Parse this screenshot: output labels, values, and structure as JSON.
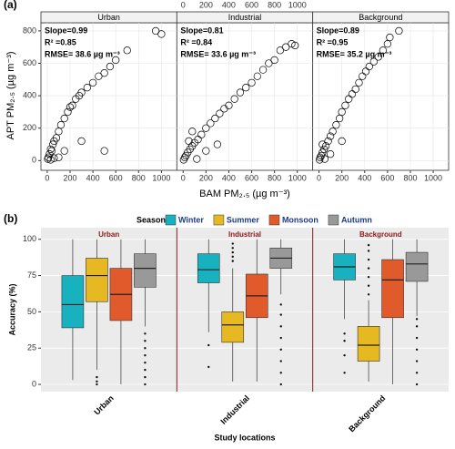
{
  "chart_data": [
    {
      "type": "scatter",
      "label": "(a)",
      "xlabel": "BAM PM₂.₅ (µg m⁻³)",
      "ylabel": "APT PM₂.₅ (µg m⁻³)",
      "xlim": [
        -55,
        1135
      ],
      "ylim": [
        -60,
        850
      ],
      "xticks": [
        0,
        200,
        400,
        600,
        800,
        1000
      ],
      "yticks": [
        0,
        200,
        400,
        600,
        800
      ],
      "grid": true,
      "color": "#000000",
      "facets": [
        {
          "name": "Urban",
          "annotations": [
            "Slope=0.99",
            "R² =0.85",
            "RMSE= 38.6 µg m⁻³"
          ],
          "x": [
            5,
            10,
            20,
            30,
            40,
            50,
            60,
            80,
            100,
            120,
            150,
            180,
            200,
            220,
            250,
            280,
            300,
            350,
            400,
            450,
            500,
            550,
            600,
            700,
            950,
            1000,
            150,
            100,
            300,
            500,
            30,
            60
          ],
          "y": [
            10,
            20,
            40,
            70,
            60,
            100,
            120,
            140,
            180,
            220,
            260,
            300,
            330,
            340,
            380,
            400,
            420,
            450,
            480,
            520,
            540,
            580,
            620,
            680,
            800,
            780,
            60,
            20,
            120,
            60,
            5,
            15
          ]
        },
        {
          "name": "Industrial",
          "annotations": [
            "Slope=0.81",
            "R² =0.84",
            "RMSE= 33.6 µg m⁻³"
          ],
          "x": [
            5,
            15,
            25,
            40,
            60,
            80,
            100,
            130,
            160,
            200,
            240,
            280,
            320,
            360,
            400,
            450,
            500,
            550,
            600,
            650,
            700,
            750,
            800,
            850,
            900,
            950,
            980,
            200,
            300,
            120,
            50,
            80
          ],
          "y": [
            5,
            20,
            30,
            50,
            70,
            90,
            110,
            130,
            160,
            200,
            230,
            260,
            290,
            320,
            340,
            380,
            420,
            450,
            480,
            520,
            560,
            600,
            620,
            680,
            700,
            720,
            710,
            60,
            100,
            10,
            120,
            180
          ]
        },
        {
          "name": "Background",
          "annotations": [
            "Slope=0.89",
            "R² =0.95",
            "RMSE= 35.2 µg m⁻³"
          ],
          "x": [
            5,
            10,
            20,
            30,
            45,
            60,
            80,
            100,
            120,
            150,
            180,
            200,
            230,
            260,
            290,
            320,
            350,
            380,
            410,
            440,
            480,
            520,
            560,
            600,
            620,
            700,
            100,
            50,
            200,
            30
          ],
          "y": [
            5,
            20,
            30,
            50,
            70,
            90,
            120,
            150,
            180,
            220,
            260,
            300,
            340,
            380,
            410,
            440,
            480,
            520,
            550,
            580,
            610,
            640,
            680,
            720,
            760,
            800,
            40,
            10,
            120,
            100
          ]
        }
      ]
    },
    {
      "type": "box",
      "label": "(b)",
      "legend_title": "Season",
      "xlabel": "Study locations",
      "ylabel": "Accuracy (%)",
      "categories": [
        "Urban",
        "Industrial",
        "Background"
      ],
      "ylim": [
        -5,
        108
      ],
      "yticks": [
        0,
        25,
        50,
        75,
        100
      ],
      "grid": true,
      "series": [
        {
          "name": "Winter",
          "color": "#17b1c0",
          "values": [
            [
              3,
              39,
              55,
              75,
              100
            ],
            [
              36,
              70,
              79,
              90,
              100
            ],
            [
              45,
              72,
              81,
              90,
              100
            ]
          ],
          "outliers": [
            [],
            [
              12,
              27
            ],
            [
              8,
              20,
              30,
              35
            ]
          ]
        },
        {
          "name": "Summer",
          "color": "#e6b822",
          "values": [
            [
              10,
              57,
              75,
              87,
              100
            ],
            [
              2,
              29,
              41,
              50,
              80
            ],
            [
              2,
              16,
              27,
              40,
              58
            ]
          ],
          "outliers": [
            [
              0,
              2,
              5
            ],
            [
              85,
              88,
              91,
              94,
              97
            ],
            [
              62,
              68,
              74,
              80,
              86,
              92,
              96
            ]
          ]
        },
        {
          "name": "Monsoon",
          "color": "#e05a2b",
          "values": [
            [
              0,
              44,
              62,
              80,
              100
            ],
            [
              2,
              46,
              61,
              76,
              100
            ],
            [
              0,
              46,
              72,
              86,
              100
            ]
          ],
          "outliers": [
            [],
            [],
            []
          ]
        },
        {
          "name": "Autumn",
          "color": "#999999",
          "values": [
            [
              40,
              67,
              80,
              90,
              100
            ],
            [
              62,
              80,
              87,
              94,
              100
            ],
            [
              47,
              71,
              83,
              91,
              100
            ]
          ],
          "outliers": [
            [
              0,
              5,
              10,
              15,
              20,
              25,
              30,
              35
            ],
            [
              0,
              8,
              16,
              24,
              32,
              40,
              48,
              55
            ],
            [
              0,
              8,
              16,
              24,
              32,
              40,
              45
            ]
          ]
        }
      ]
    }
  ]
}
